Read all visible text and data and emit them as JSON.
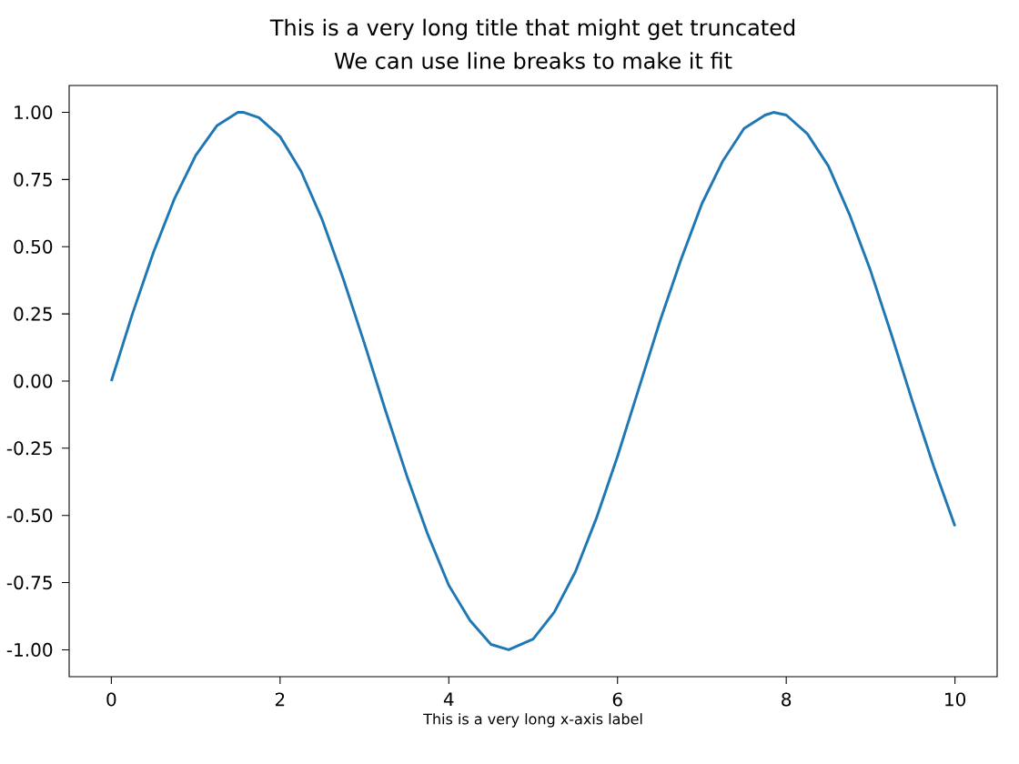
{
  "chart_data": {
    "type": "line",
    "title": "This is a very long title that might get truncated",
    "subtitle": "We can use line breaks to make it fit",
    "xlabel": "This is a very long x-axis label",
    "x": [
      0,
      0.25,
      0.5,
      0.75,
      1,
      1.25,
      1.5,
      1.57,
      1.75,
      2,
      2.25,
      2.5,
      2.75,
      3,
      3.25,
      3.5,
      3.75,
      4,
      4.25,
      4.5,
      4.71,
      5,
      5.25,
      5.5,
      5.75,
      6,
      6.25,
      6.5,
      6.75,
      7,
      7.25,
      7.5,
      7.75,
      7.85,
      8,
      8.25,
      8.5,
      8.75,
      9,
      9.25,
      9.5,
      9.75,
      10
    ],
    "series": [
      {
        "color": "#1f77b4",
        "values": [
          0,
          0.25,
          0.48,
          0.68,
          0.84,
          0.95,
          1.0,
          1.0,
          0.98,
          0.91,
          0.78,
          0.6,
          0.38,
          0.14,
          -0.11,
          -0.35,
          -0.57,
          -0.76,
          -0.89,
          -0.98,
          -1.0,
          -0.96,
          -0.86,
          -0.71,
          -0.51,
          -0.28,
          -0.03,
          0.22,
          0.45,
          0.66,
          0.82,
          0.94,
          0.99,
          1.0,
          0.99,
          0.92,
          0.8,
          0.62,
          0.41,
          0.17,
          -0.08,
          -0.32,
          -0.54
        ]
      }
    ],
    "xlim": [
      -0.5,
      10.5
    ],
    "ylim": [
      -1.1,
      1.1
    ],
    "xticks": [
      0,
      2,
      4,
      6,
      8,
      10
    ],
    "yticks": [
      {
        "value": -1,
        "label": "-1.00"
      },
      {
        "value": -0.75,
        "label": "-0.75"
      },
      {
        "value": -0.5,
        "label": "-0.50"
      },
      {
        "value": -0.25,
        "label": "-0.25"
      },
      {
        "value": 0,
        "label": "0.00"
      },
      {
        "value": 0.25,
        "label": "0.25"
      },
      {
        "value": 0.5,
        "label": "0.50"
      },
      {
        "value": 0.75,
        "label": "0.75"
      },
      {
        "value": 1,
        "label": "1.00"
      }
    ],
    "marker": "none",
    "line_style": "solid"
  }
}
